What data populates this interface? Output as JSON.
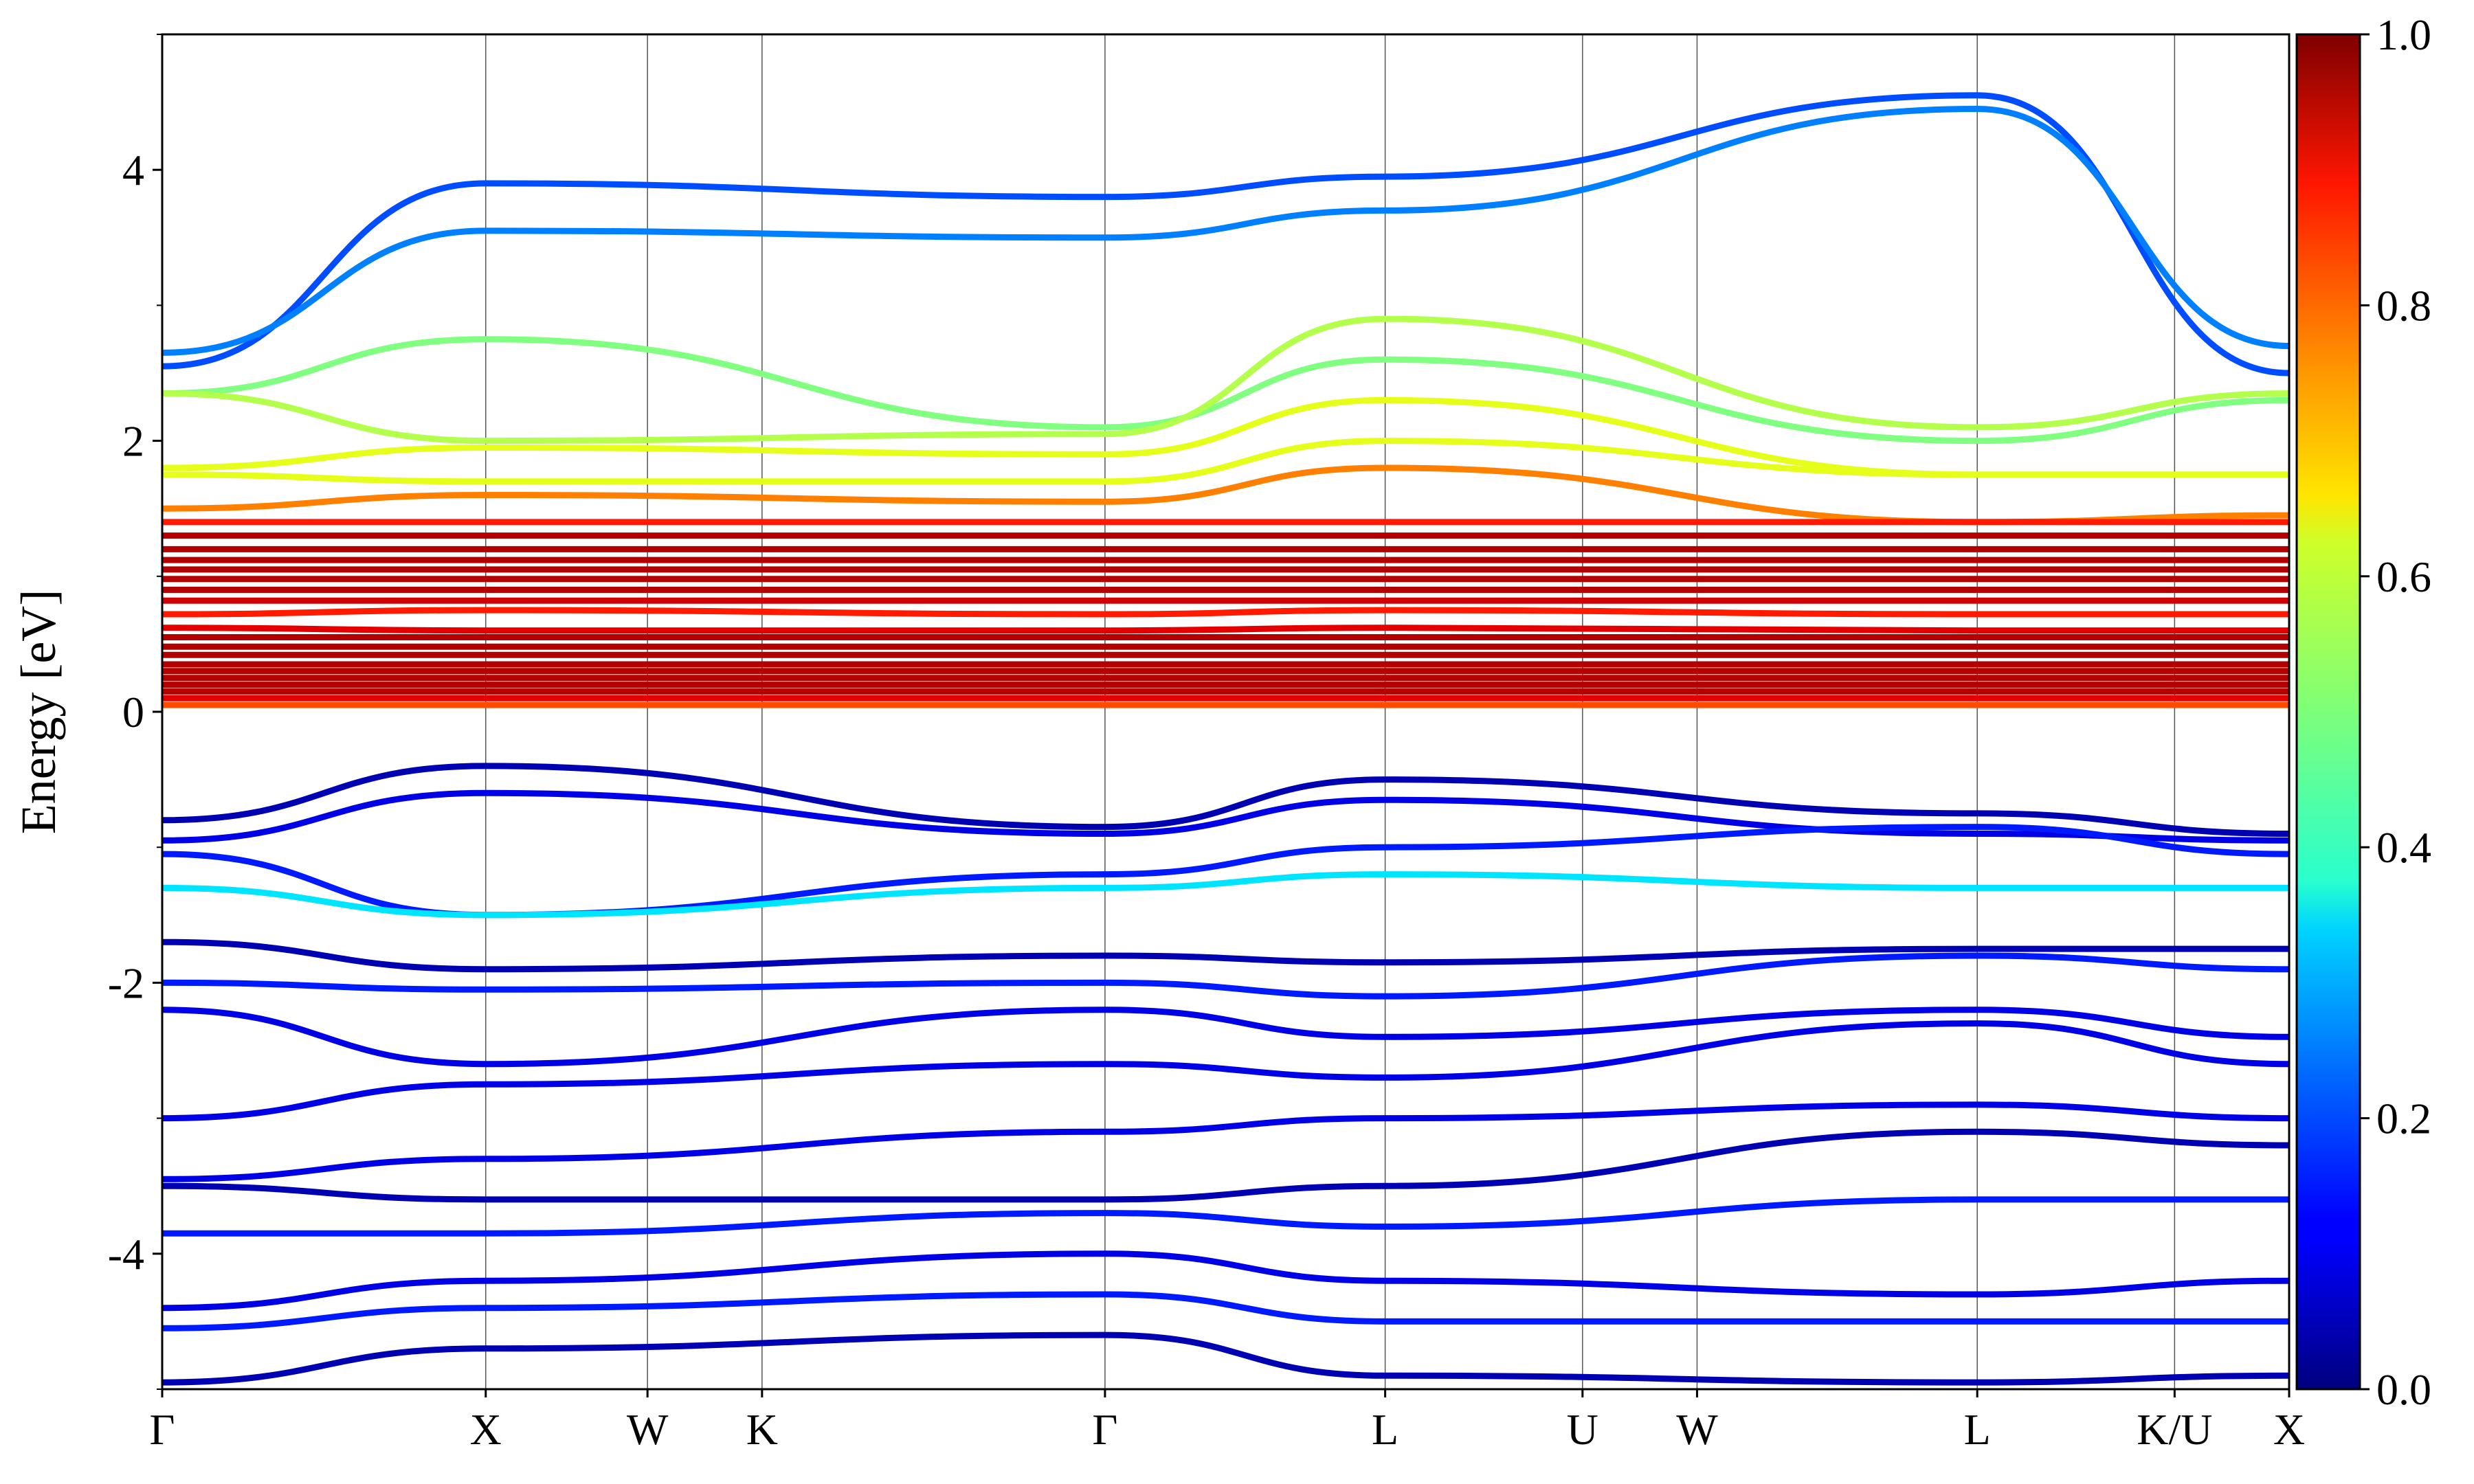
{
  "chart_data": {
    "type": "line",
    "ylabel": "Energy [eV]",
    "xlabel": "",
    "ylim": [
      -5,
      5
    ],
    "yticks": [
      4,
      2,
      0,
      -2,
      -4
    ],
    "ytick_labels": [
      "4",
      "2",
      "0",
      "-2",
      "-4"
    ],
    "kpath": {
      "labels": [
        "Γ",
        "X",
        "W",
        "K",
        "Γ",
        "L",
        "U",
        "W",
        "L",
        "K/U",
        "X"
      ],
      "positions": [
        0,
        1.0,
        1.5,
        1.854,
        2.914,
        3.78,
        4.39,
        4.744,
        5.61,
        6.22,
        6.574
      ]
    },
    "colorbar": {
      "colormap": "jet",
      "range": [
        0.0,
        1.0
      ],
      "tick_labels": [
        "1.0",
        "0.8",
        "0.6",
        "0.4",
        "0.2",
        "0.0"
      ],
      "tick_values": [
        1.0,
        0.8,
        0.6,
        0.4,
        0.2,
        0.0
      ]
    },
    "series": [
      {
        "values": [
          2.55,
          3.9,
          3.8,
          3.95,
          4.55,
          2.5
        ],
        "weight": 0.2
      },
      {
        "values": [
          2.65,
          3.55,
          3.5,
          3.7,
          4.45,
          2.7
        ],
        "weight": 0.25
      },
      {
        "values": [
          2.35,
          2.75,
          2.1,
          2.6,
          2.0,
          2.3
        ],
        "weight": 0.5
      },
      {
        "values": [
          2.35,
          2.0,
          2.05,
          2.9,
          2.1,
          2.35
        ],
        "weight": 0.55
      },
      {
        "values": [
          1.8,
          1.95,
          1.9,
          2.3,
          1.75,
          1.75
        ],
        "weight": 0.6
      },
      {
        "values": [
          1.75,
          1.7,
          1.7,
          2.0,
          1.75,
          1.75
        ],
        "weight": 0.6
      },
      {
        "values": [
          1.5,
          1.6,
          1.55,
          1.8,
          1.4,
          1.45
        ],
        "weight": 0.75
      },
      {
        "values": [
          1.4,
          1.4,
          1.4,
          1.4,
          1.4,
          1.4
        ],
        "weight": 0.85
      },
      {
        "values": [
          1.3,
          1.3,
          1.3,
          1.3,
          1.3,
          1.3
        ],
        "weight": 0.95
      },
      {
        "values": [
          1.2,
          1.2,
          1.2,
          1.2,
          1.2,
          1.2
        ],
        "weight": 0.95
      },
      {
        "values": [
          1.12,
          1.12,
          1.12,
          1.12,
          1.12,
          1.12
        ],
        "weight": 0.95
      },
      {
        "values": [
          1.05,
          1.05,
          1.05,
          1.05,
          1.05,
          1.05
        ],
        "weight": 0.95
      },
      {
        "values": [
          0.98,
          0.98,
          0.98,
          0.98,
          0.98,
          0.98
        ],
        "weight": 0.95
      },
      {
        "values": [
          0.9,
          0.9,
          0.9,
          0.9,
          0.9,
          0.9
        ],
        "weight": 0.95
      },
      {
        "values": [
          0.82,
          0.82,
          0.82,
          0.82,
          0.82,
          0.82
        ],
        "weight": 0.92
      },
      {
        "values": [
          0.72,
          0.75,
          0.72,
          0.75,
          0.72,
          0.72
        ],
        "weight": 0.85
      },
      {
        "values": [
          0.62,
          0.6,
          0.6,
          0.62,
          0.6,
          0.6
        ],
        "weight": 0.9
      },
      {
        "values": [
          0.55,
          0.55,
          0.55,
          0.55,
          0.55,
          0.55
        ],
        "weight": 0.95
      },
      {
        "values": [
          0.48,
          0.48,
          0.48,
          0.48,
          0.48,
          0.48
        ],
        "weight": 0.95
      },
      {
        "values": [
          0.42,
          0.42,
          0.42,
          0.42,
          0.42,
          0.42
        ],
        "weight": 0.95
      },
      {
        "values": [
          0.35,
          0.35,
          0.35,
          0.35,
          0.35,
          0.35
        ],
        "weight": 0.95
      },
      {
        "values": [
          0.3,
          0.3,
          0.3,
          0.3,
          0.3,
          0.3
        ],
        "weight": 0.95
      },
      {
        "values": [
          0.25,
          0.25,
          0.25,
          0.25,
          0.25,
          0.25
        ],
        "weight": 0.95
      },
      {
        "values": [
          0.2,
          0.2,
          0.2,
          0.2,
          0.2,
          0.2
        ],
        "weight": 0.95
      },
      {
        "values": [
          0.15,
          0.15,
          0.15,
          0.15,
          0.15,
          0.15
        ],
        "weight": 0.95
      },
      {
        "values": [
          0.1,
          0.1,
          0.1,
          0.1,
          0.1,
          0.1
        ],
        "weight": 0.9
      },
      {
        "values": [
          0.05,
          0.05,
          0.05,
          0.05,
          0.05,
          0.05
        ],
        "weight": 0.8
      },
      {
        "values": [
          -0.8,
          -0.4,
          -0.85,
          -0.5,
          -0.75,
          -0.9
        ],
        "weight": 0.05
      },
      {
        "values": [
          -0.95,
          -0.6,
          -0.9,
          -0.65,
          -0.9,
          -0.95
        ],
        "weight": 0.1
      },
      {
        "values": [
          -1.05,
          -1.5,
          -1.2,
          -1.0,
          -0.85,
          -1.05
        ],
        "weight": 0.15
      },
      {
        "values": [
          -1.3,
          -1.5,
          -1.3,
          -1.2,
          -1.3,
          -1.3
        ],
        "weight": 0.35
      },
      {
        "values": [
          -1.7,
          -1.9,
          -1.8,
          -1.85,
          -1.75,
          -1.75
        ],
        "weight": 0.05
      },
      {
        "values": [
          -2.0,
          -2.05,
          -2.0,
          -2.1,
          -1.8,
          -1.9
        ],
        "weight": 0.15
      },
      {
        "values": [
          -2.2,
          -2.6,
          -2.2,
          -2.4,
          -2.2,
          -2.4
        ],
        "weight": 0.1
      },
      {
        "values": [
          -3.0,
          -2.75,
          -2.6,
          -2.7,
          -2.3,
          -2.6
        ],
        "weight": 0.1
      },
      {
        "values": [
          -3.45,
          -3.3,
          -3.1,
          -3.0,
          -2.9,
          -3.0
        ],
        "weight": 0.1
      },
      {
        "values": [
          -3.5,
          -3.6,
          -3.6,
          -3.5,
          -3.1,
          -3.2
        ],
        "weight": 0.05
      },
      {
        "values": [
          -3.85,
          -3.85,
          -3.7,
          -3.8,
          -3.6,
          -3.6
        ],
        "weight": 0.15
      },
      {
        "values": [
          -4.4,
          -4.2,
          -4.0,
          -4.2,
          -4.3,
          -4.2
        ],
        "weight": 0.1
      },
      {
        "values": [
          -4.55,
          -4.4,
          -4.3,
          -4.5,
          -4.5,
          -4.5
        ],
        "weight": 0.15
      },
      {
        "values": [
          -4.95,
          -4.7,
          -4.6,
          -4.9,
          -4.95,
          -4.9
        ],
        "weight": 0.05
      }
    ]
  }
}
